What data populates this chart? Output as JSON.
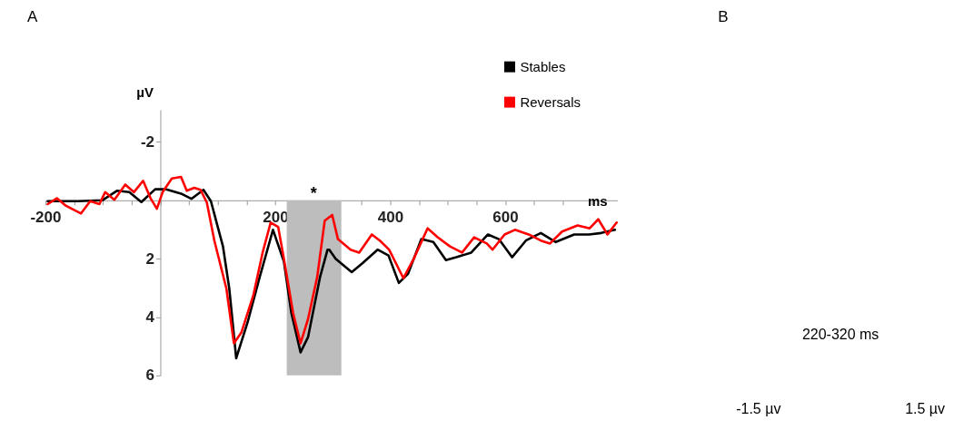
{
  "chart_data": [
    {
      "type": "line",
      "xlabel": "ms",
      "ylabel": "µV",
      "xlim": [
        -200,
        795
      ],
      "ylim": [
        6,
        -3.1
      ],
      "xticks": [
        -200,
        {
          "value": -150,
          "label": null
        },
        {
          "value": -100,
          "label": null
        },
        {
          "value": -50,
          "label": null
        },
        {
          "value": 0,
          "label": null
        },
        {
          "value": 50,
          "label": null
        },
        {
          "value": 100,
          "label": null
        },
        {
          "value": 150,
          "label": null
        },
        200,
        {
          "value": 250,
          "label": null
        },
        {
          "value": 300,
          "label": null
        },
        {
          "value": 350,
          "label": null
        },
        400,
        {
          "value": 450,
          "label": null
        },
        {
          "value": 500,
          "label": null
        },
        {
          "value": 550,
          "label": null
        },
        600,
        {
          "value": 650,
          "label": null
        },
        {
          "value": 700,
          "label": null
        },
        {
          "value": 750,
          "label": null
        }
      ],
      "yticks": [
        -2,
        2,
        4,
        6
      ],
      "grid": false,
      "legend": "top right",
      "bands": [
        {
          "axis": "x",
          "from": 220,
          "to": 315,
          "color": "#bdbdbd"
        }
      ],
      "annotations": [
        "A",
        "*"
      ],
      "series": [
        {
          "name": "Stables",
          "color": "#000000",
          "x": [
            -196,
            -143,
            -101,
            -75,
            -54,
            -33,
            -9,
            9,
            36,
            54,
            75,
            88,
            109,
            120,
            132,
            152,
            173,
            196,
            215,
            228,
            244,
            257,
            278,
            291,
            294,
            305,
            333,
            352,
            378,
            397,
            415,
            431,
            454,
            475,
            497,
            515,
            541,
            570,
            589,
            612,
            636,
            662,
            688,
            720,
            746,
            767,
            791
          ],
          "values": [
            0.03,
            0.03,
            0,
            -0.33,
            -0.28,
            0.06,
            -0.38,
            -0.38,
            -0.23,
            -0.05,
            -0.36,
            0.03,
            1.58,
            3.03,
            5.41,
            4.17,
            2.62,
            1.01,
            2.1,
            3.86,
            5.21,
            4.69,
            2.62,
            1.69,
            1.69,
            2.0,
            2.46,
            2.15,
            1.69,
            1.89,
            2.83,
            2.52,
            1.33,
            1.43,
            2.05,
            1.95,
            1.79,
            1.17,
            1.33,
            1.95,
            1.38,
            1.12,
            1.43,
            1.17,
            1.17,
            1.12,
            1.01
          ]
        },
        {
          "name": "Reversals",
          "color": "#ff0000",
          "x": [
            -196,
            -180,
            -164,
            -138,
            -122,
            -106,
            -96,
            -80,
            -61,
            -46,
            -30,
            -17,
            -6,
            4,
            20,
            36,
            46,
            59,
            70,
            81,
            94,
            115,
            128,
            141,
            162,
            178,
            192,
            205,
            215,
            231,
            244,
            257,
            273,
            286,
            299,
            309,
            331,
            346,
            368,
            382,
            398,
            423,
            441,
            465,
            483,
            504,
            525,
            546,
            568,
            578,
            599,
            617,
            641,
            662,
            678,
            699,
            726,
            747,
            762,
            778,
            794
          ],
          "values": [
            0.13,
            -0.07,
            0.19,
            0.45,
            0.03,
            0.13,
            -0.28,
            -0.02,
            -0.54,
            -0.28,
            -0.67,
            -0.07,
            0.29,
            -0.28,
            -0.75,
            -0.8,
            -0.33,
            -0.43,
            -0.36,
            0.08,
            1.38,
            3.03,
            4.9,
            4.53,
            3.24,
            1.79,
            0.76,
            0.91,
            2.0,
            3.86,
            4.9,
            4.07,
            2.62,
            0.7,
            0.5,
            1.33,
            1.69,
            1.79,
            1.17,
            1.38,
            1.69,
            2.67,
            2.0,
            0.96,
            1.27,
            1.58,
            1.79,
            1.27,
            1.48,
            1.69,
            1.17,
            1.01,
            1.17,
            1.38,
            1.48,
            1.07,
            0.86,
            0.96,
            0.65,
            1.17,
            0.76
          ]
        }
      ]
    },
    {
      "type": "other",
      "annotations": [
        "B",
        "220-320 ms",
        "-1.5 µv",
        "1.5 µv"
      ]
    }
  ]
}
